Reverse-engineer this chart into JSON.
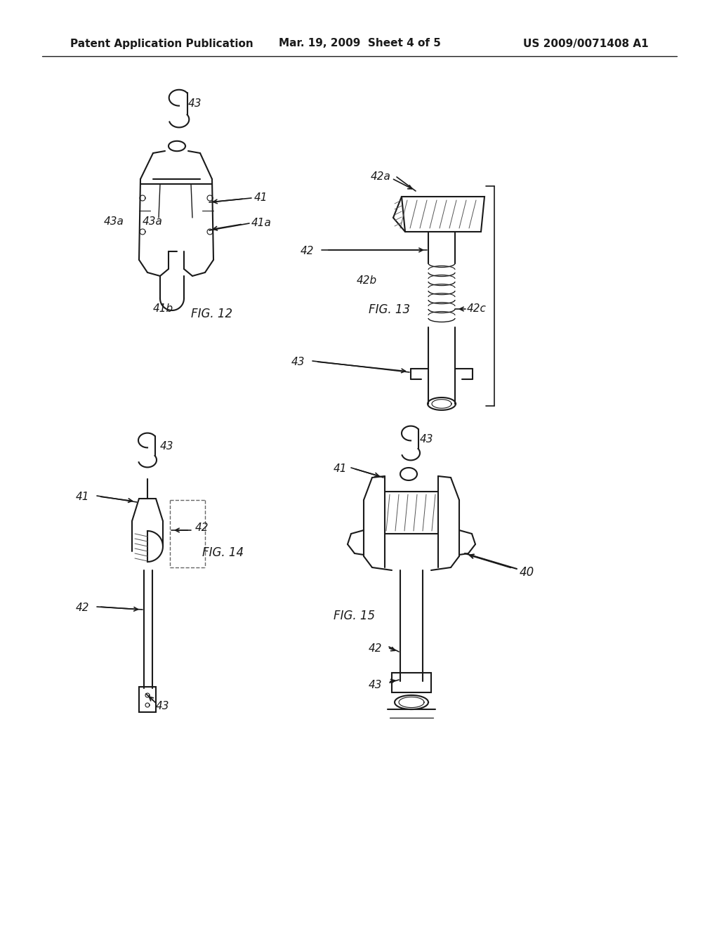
{
  "bg_color": "#f5f5f0",
  "page_bg": "#ffffff",
  "header_left": "Patent Application Publication",
  "header_mid": "Mar. 19, 2009  Sheet 4 of 5",
  "header_right": "US 2009/0071408 A1",
  "header_fontsize": 11,
  "header_bold": true,
  "line_color": "#1a1a1a",
  "text_color": "#1a1a1a",
  "fig_labels": {
    "fig12": "FIG. 12",
    "fig13": "FIG. 13",
    "fig14": "FIG. 14",
    "fig15": "FIG. 15"
  },
  "ref_nums": [
    "40",
    "41",
    "41a",
    "41b",
    "42",
    "42a",
    "42b",
    "42c",
    "43",
    "43a"
  ]
}
